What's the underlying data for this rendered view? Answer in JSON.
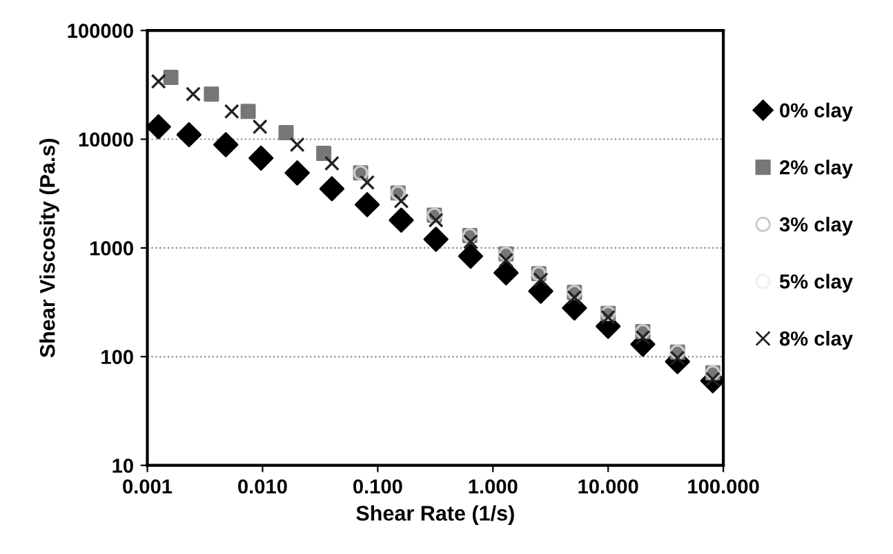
{
  "chart_data": {
    "type": "scatter",
    "xlabel": "Shear Rate (1/s)",
    "ylabel": "Shear Viscosity (Pa.s)",
    "log": "xy",
    "xlim": [
      0.001,
      100
    ],
    "xticks": [
      0.001,
      {
        "value": 0.01,
        "label": "0.010"
      },
      {
        "value": 0.1,
        "label": "0.100"
      },
      {
        "value": 1,
        "label": "1.000"
      },
      {
        "value": 10,
        "label": "10.000"
      },
      {
        "value": 100,
        "label": "100.000"
      }
    ],
    "ylim": [
      10,
      100000
    ],
    "yticks": [
      10,
      100,
      1000,
      10000,
      100000
    ],
    "grid": "y",
    "legend": "right",
    "series": [
      {
        "name": "0% clay",
        "color": "#000000",
        "marker": "diamond",
        "x": [
          0.00125,
          0.0023,
          0.0048,
          0.0097,
          0.02,
          0.04,
          0.081,
          0.16,
          0.32,
          0.64,
          1.3,
          2.6,
          5.1,
          10,
          20,
          40,
          81
        ],
        "values": [
          13000,
          11000,
          8900,
          6700,
          4900,
          3500,
          2500,
          1800,
          1200,
          840,
          590,
          400,
          280,
          190,
          130,
          90,
          60
        ]
      },
      {
        "name": "2% clay",
        "color": "#777777",
        "marker": "square",
        "x": [
          0.0016,
          0.0036,
          0.0075,
          0.016,
          0.034,
          0.071,
          0.15,
          0.31,
          0.63,
          1.3,
          2.5,
          5.1,
          10,
          20,
          40,
          81
        ],
        "values": [
          37000,
          26000,
          18000,
          11500,
          7400,
          4900,
          3200,
          2000,
          1300,
          880,
          580,
          390,
          250,
          170,
          110,
          71
        ]
      },
      {
        "name": "3% clay",
        "color": "#c8c8c8",
        "marker": "circle",
        "x": [
          0.071,
          0.15,
          0.31,
          0.63,
          1.3,
          2.5,
          5.1,
          10,
          20,
          40,
          81
        ],
        "values": [
          4900,
          3200,
          2000,
          1300,
          880,
          580,
          390,
          250,
          170,
          110,
          71
        ]
      },
      {
        "name": "5% clay",
        "color": "#eeeeee",
        "marker": "circle"
      },
      {
        "name": "8% clay",
        "color": "#222222",
        "marker": "cross",
        "x": [
          0.00125,
          0.0025,
          0.0054,
          0.0095,
          0.02,
          0.04,
          0.081,
          0.16,
          0.32,
          0.64,
          1.3,
          2.6,
          5.1,
          10,
          20,
          40,
          81
        ],
        "values": [
          34000,
          26000,
          18000,
          13000,
          8900,
          6000,
          4000,
          2700,
          1800,
          1140,
          770,
          510,
          350,
          230,
          150,
          97,
          62
        ]
      }
    ]
  }
}
